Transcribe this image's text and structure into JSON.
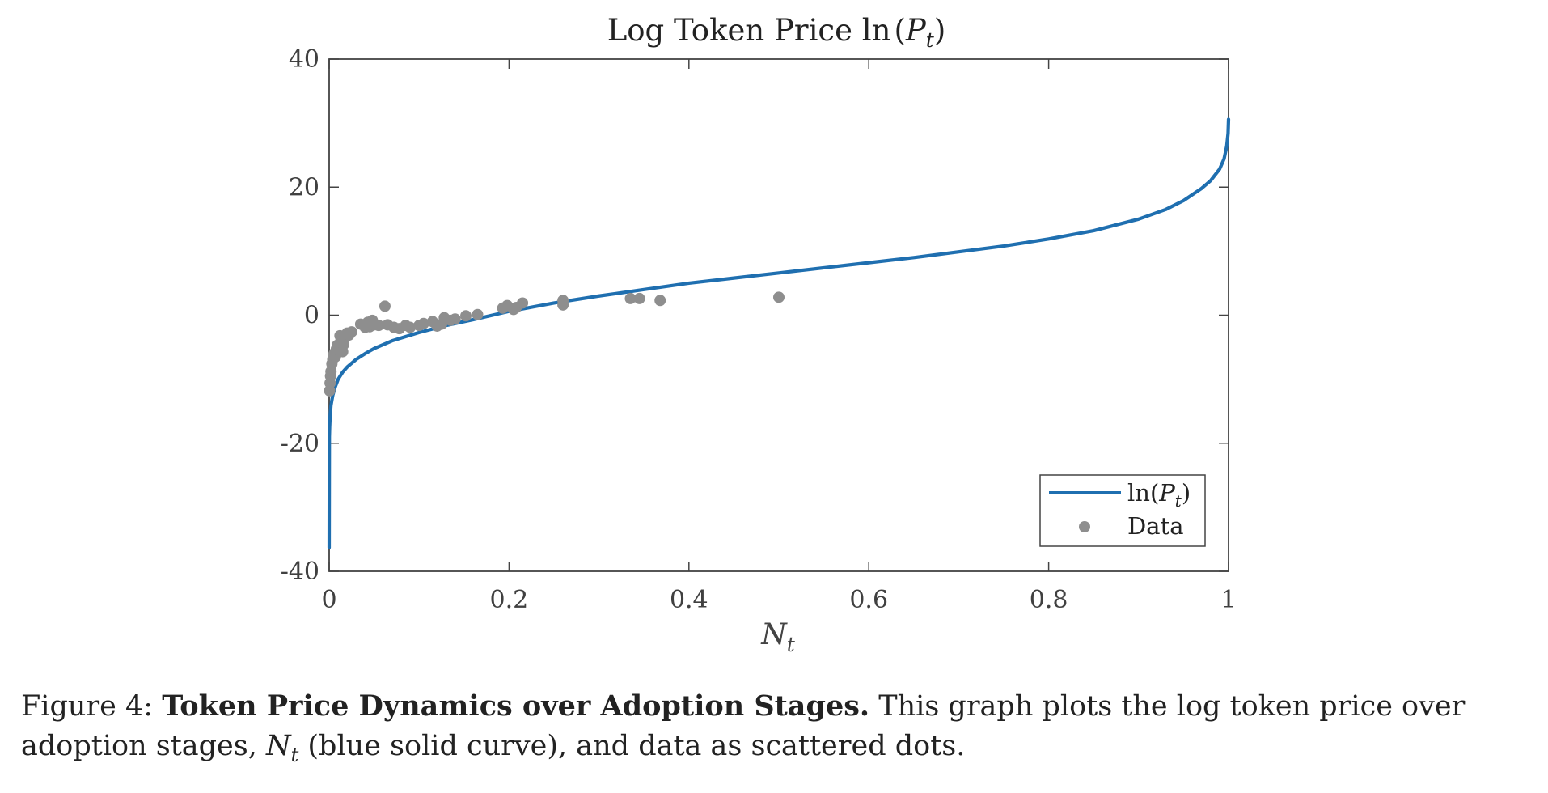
{
  "chart_data": {
    "type": "line",
    "title": "Log Token Price ln(P_t)",
    "title_parts": {
      "prefix": "Log Token Price ln",
      "open": "(",
      "var": "P",
      "sub": "t",
      "close": ")"
    },
    "xlabel": {
      "var": "N",
      "sub": "t"
    },
    "ylabel": "",
    "xlim": [
      0,
      1
    ],
    "ylim": [
      -40,
      40
    ],
    "xticks": [
      0,
      0.2,
      0.4,
      0.6,
      0.8,
      1
    ],
    "xtick_labels": [
      "0",
      "0.2",
      "0.4",
      "0.6",
      "0.8",
      "1"
    ],
    "yticks": [
      40,
      20,
      0,
      -20,
      -40
    ],
    "ytick_labels": [
      "40",
      "20",
      "0",
      "-20",
      "-40"
    ],
    "grid": false,
    "legend_position": "bottom-right",
    "legend": [
      {
        "label_prefix": "ln(",
        "label_var": "P",
        "label_sub": "t",
        "label_suffix": ")",
        "kind": "line"
      },
      {
        "label": "Data",
        "kind": "marker"
      }
    ],
    "colors": {
      "curve": "#1f6fb0",
      "data": "#8e8e8e",
      "axes": "#444444"
    },
    "series": [
      {
        "name": "ln(P_t)",
        "kind": "line",
        "x": [
          0.0,
          0.0002,
          0.0005,
          0.001,
          0.002,
          0.004,
          0.007,
          0.01,
          0.015,
          0.02,
          0.03,
          0.04,
          0.05,
          0.07,
          0.1,
          0.13,
          0.16,
          0.2,
          0.25,
          0.3,
          0.35,
          0.4,
          0.45,
          0.5,
          0.55,
          0.6,
          0.65,
          0.7,
          0.75,
          0.8,
          0.85,
          0.9,
          0.93,
          0.95,
          0.97,
          0.98,
          0.99,
          0.995,
          0.998,
          0.9995,
          1.0
        ],
        "y": [
          -36.3,
          -19.0,
          -17.5,
          -15.9,
          -14.1,
          -12.5,
          -11.1,
          -10.0,
          -8.9,
          -8.1,
          -6.9,
          -6.0,
          -5.2,
          -4.0,
          -2.7,
          -1.6,
          -0.7,
          0.6,
          1.9,
          3.0,
          4.0,
          5.0,
          5.8,
          6.6,
          7.4,
          8.2,
          9.0,
          9.9,
          10.8,
          11.9,
          13.2,
          15.0,
          16.5,
          17.9,
          19.8,
          21.0,
          22.8,
          24.4,
          26.4,
          28.4,
          30.6
        ]
      },
      {
        "name": "Data",
        "kind": "scatter",
        "x": [
          0.0005,
          0.001,
          0.0015,
          0.002,
          0.003,
          0.004,
          0.005,
          0.006,
          0.007,
          0.008,
          0.009,
          0.01,
          0.012,
          0.013,
          0.015,
          0.016,
          0.018,
          0.02,
          0.022,
          0.025,
          0.035,
          0.04,
          0.043,
          0.045,
          0.048,
          0.05,
          0.055,
          0.062,
          0.065,
          0.072,
          0.078,
          0.085,
          0.09,
          0.1,
          0.105,
          0.115,
          0.12,
          0.125,
          0.128,
          0.135,
          0.14,
          0.152,
          0.165,
          0.193,
          0.198,
          0.205,
          0.208,
          0.215,
          0.26,
          0.26,
          0.335,
          0.345,
          0.368,
          0.5
        ],
        "y": [
          -11.8,
          -10.6,
          -9.5,
          -8.8,
          -7.6,
          -6.9,
          -6.2,
          -5.9,
          -6.5,
          -5.3,
          -4.7,
          -5.4,
          -3.2,
          -4.0,
          -5.7,
          -4.6,
          -3.5,
          -2.8,
          -3.1,
          -2.6,
          -1.4,
          -1.9,
          -1.1,
          -1.8,
          -0.8,
          -1.5,
          -1.6,
          1.4,
          -1.5,
          -1.9,
          -2.1,
          -1.6,
          -1.9,
          -1.6,
          -1.3,
          -1.0,
          -1.7,
          -1.4,
          -0.4,
          -0.8,
          -0.6,
          -0.1,
          0.1,
          1.1,
          1.5,
          0.9,
          1.2,
          1.9,
          1.6,
          2.3,
          2.6,
          2.6,
          2.3,
          2.8
        ]
      }
    ]
  },
  "caption": {
    "figure_label": "Figure 4:",
    "bold_title": "Token Price Dynamics over Adoption Stages.",
    "text_1": "This graph plots the log token price over adoption stages,",
    "math_var": "N",
    "math_sub": "t",
    "text_2": "(blue solid curve), and data as scattered dots."
  }
}
